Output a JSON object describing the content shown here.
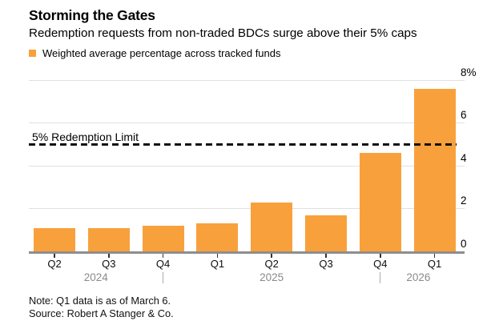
{
  "header": {
    "title": "Storming the Gates",
    "subtitle": "Redemption requests from non-traded BDCs surge above their 5% caps",
    "legend": {
      "label": "Weighted average percentage across tracked funds",
      "swatch_color": "#F8A13C"
    }
  },
  "chart_data": {
    "type": "bar",
    "title": "Storming the Gates",
    "subtitle": "Redemption requests from non-traded BDCs surge above their 5% caps",
    "legend_entries": [
      "Weighted average percentage across tracked funds"
    ],
    "legend_position": "top-left",
    "categories": [
      "Q2",
      "Q3",
      "Q4",
      "Q1",
      "Q2",
      "Q3",
      "Q4",
      "Q1"
    ],
    "values": [
      1.1,
      1.1,
      1.2,
      1.3,
      2.3,
      1.7,
      4.6,
      7.6
    ],
    "unit": "%",
    "ylim": [
      0,
      8
    ],
    "yticks": [
      0,
      2,
      4,
      6,
      8
    ],
    "ytick_labels": [
      "0",
      "2",
      "4",
      "6",
      "8%"
    ],
    "grid": true,
    "bar_color": "#F8A13C",
    "year_groups": [
      {
        "label": "2024",
        "start_index": 0,
        "end_index": 2
      },
      {
        "label": "2025",
        "start_index": 3,
        "end_index": 6
      },
      {
        "label": "2026",
        "start_index": 7,
        "end_index": 7
      }
    ],
    "reference_line": {
      "value": 5,
      "label": "5% Redemption Limit",
      "style": "dashed",
      "color": "#111111"
    }
  },
  "footer": {
    "note": "Note: Q1 data is as of March 6.",
    "source": "Source: Robert A Stanger & Co."
  },
  "colors": {
    "bar": "#F8A13C",
    "gridline": "#E0E0E0",
    "baseline": "#8E8E8E",
    "year_label": "#8A8A8A",
    "text": "#000000"
  }
}
